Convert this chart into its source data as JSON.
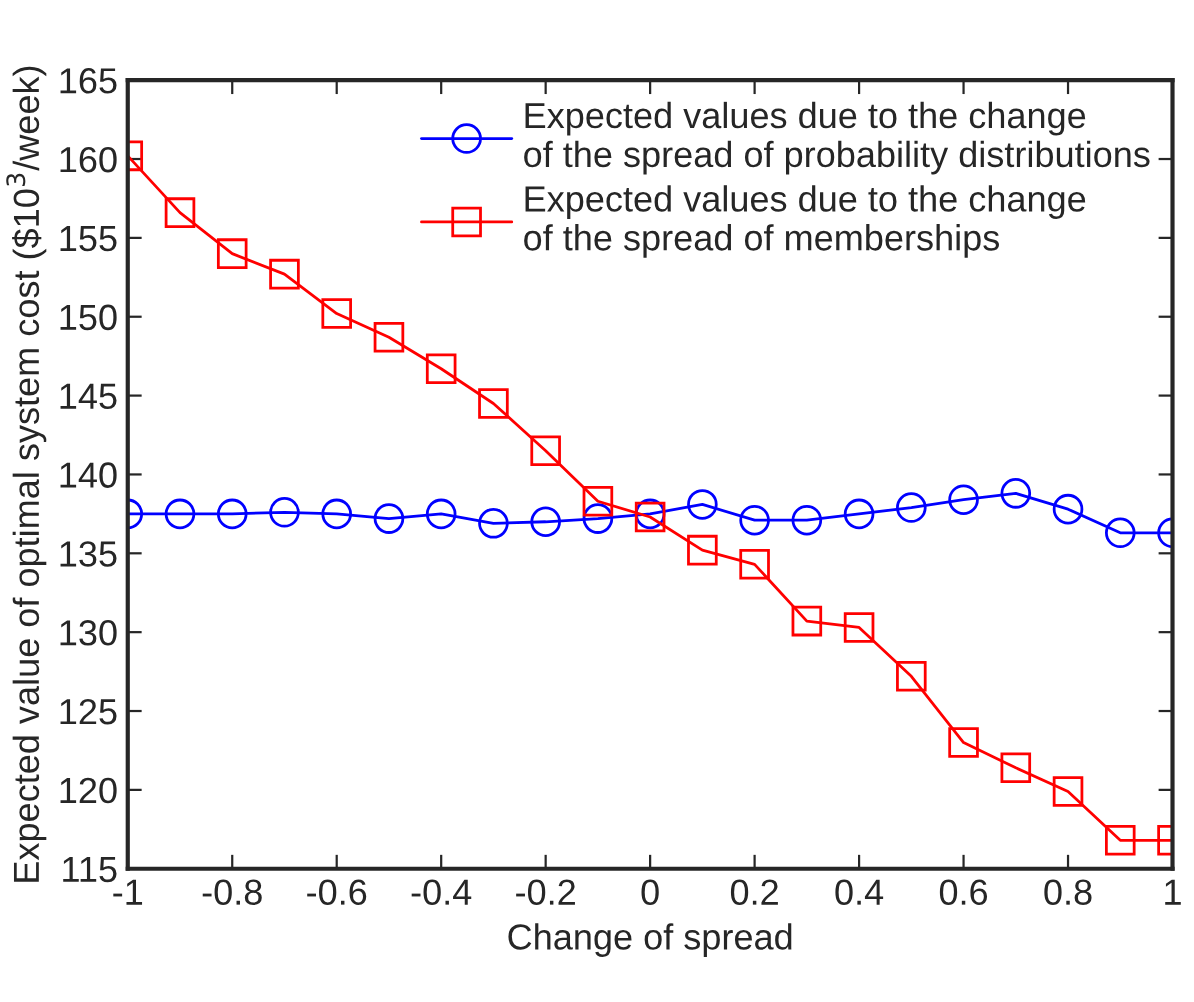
{
  "chart_data": {
    "type": "line",
    "xlabel": "Change of spread",
    "ylabel": "Expected value of optimal system cost ($10$^{3}$/week)",
    "x": [
      -1,
      -0.9,
      -0.8,
      -0.7,
      -0.6,
      -0.5,
      -0.4,
      -0.3,
      -0.2,
      -0.1,
      0,
      0.1,
      0.2,
      0.3,
      0.4,
      0.5,
      0.6,
      0.7,
      0.8,
      0.9,
      1
    ],
    "series": [
      {
        "name": "Expected values due to the change\nof the spread of probability distributions",
        "color": "#0000ff",
        "marker": "circle",
        "values": [
          137.5,
          137.5,
          137.5,
          137.6,
          137.5,
          137.2,
          137.5,
          136.9,
          137.0,
          137.2,
          137.5,
          138.1,
          137.1,
          137.1,
          137.5,
          137.9,
          138.4,
          138.8,
          137.8,
          136.3,
          136.3
        ]
      },
      {
        "name": "Expected values due to the change\nof the spread of memberships",
        "color": "#ff0000",
        "marker": "square",
        "values": [
          160.2,
          156.6,
          154.0,
          152.7,
          150.2,
          148.7,
          146.7,
          144.5,
          141.5,
          138.3,
          137.3,
          135.2,
          134.3,
          130.7,
          130.3,
          127.2,
          123.0,
          121.4,
          119.9,
          116.8,
          116.8
        ]
      }
    ],
    "xlim": [
      -1,
      1
    ],
    "xticks": [
      -1,
      -0.8,
      -0.6,
      -0.4,
      -0.2,
      0,
      0.2,
      0.4,
      0.6,
      0.8,
      1
    ],
    "ylim": [
      115,
      165
    ],
    "yticks": [
      115,
      120,
      125,
      130,
      135,
      140,
      145,
      150,
      155,
      160,
      165
    ],
    "grid": false,
    "legend": "top right",
    "line_style": "solid"
  }
}
